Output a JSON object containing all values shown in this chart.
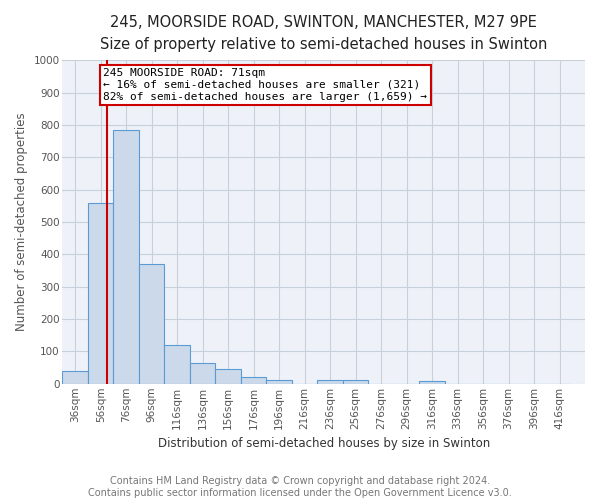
{
  "title": "245, MOORSIDE ROAD, SWINTON, MANCHESTER, M27 9PE",
  "subtitle": "Size of property relative to semi-detached houses in Swinton",
  "xlabel": "Distribution of semi-detached houses by size in Swinton",
  "ylabel": "Number of semi-detached properties",
  "footer_line1": "Contains HM Land Registry data © Crown copyright and database right 2024.",
  "footer_line2": "Contains public sector information licensed under the Open Government Licence v3.0.",
  "bar_edges": [
    36,
    56,
    76,
    96,
    116,
    136,
    156,
    176,
    196,
    216,
    236,
    256,
    276,
    296,
    316,
    336,
    356,
    376,
    396,
    416
  ],
  "bar_heights": [
    40,
    558,
    785,
    370,
    120,
    63,
    47,
    22,
    12,
    0,
    13,
    13,
    0,
    0,
    10,
    0,
    0,
    0,
    0,
    0
  ],
  "bar_color": "#ccd9ea",
  "bar_edge_color": "#5b9bd5",
  "property_size": 71,
  "smaller_pct": "16%",
  "smaller_count": "321",
  "larger_pct": "82%",
  "larger_count": "1,659",
  "red_line_color": "#cc0000",
  "annotation_box_color": "#ffffff",
  "annotation_box_edge": "#cc0000",
  "ylim": [
    0,
    1000
  ],
  "yticks": [
    0,
    100,
    200,
    300,
    400,
    500,
    600,
    700,
    800,
    900,
    1000
  ],
  "background_color": "#eef2f8",
  "grid_color": "#c8d0dc",
  "title_fontsize": 10.5,
  "subtitle_fontsize": 9.5,
  "label_fontsize": 8.5,
  "tick_fontsize": 7.5,
  "footer_fontsize": 7.0,
  "annotation_fontsize": 8.0
}
